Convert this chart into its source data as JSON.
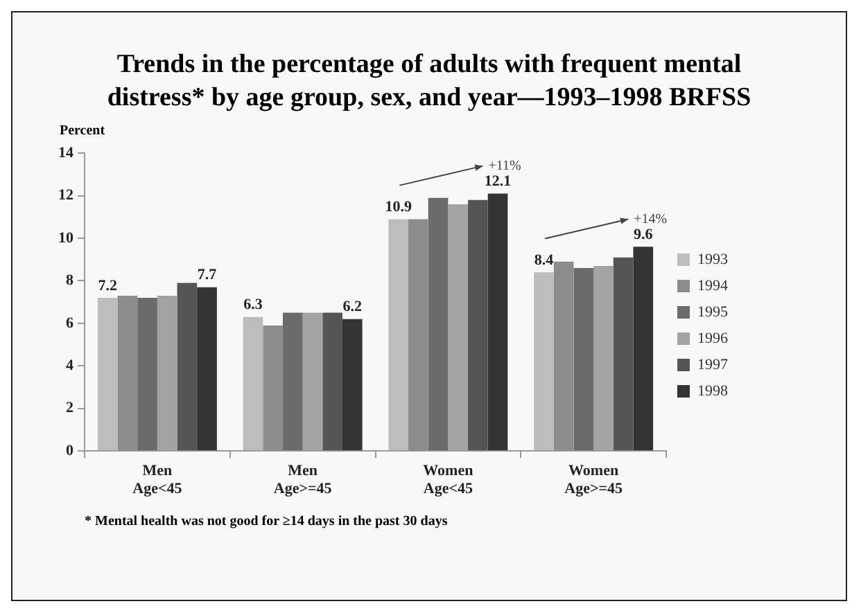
{
  "chart_data": {
    "type": "bar",
    "title": "Trends in the percentage of adults with frequent mental distress* by age group, sex, and year—1993–1998 BRFSS",
    "ylabel": "Percent",
    "categories": [
      "Men Age<45",
      "Men Age>=45",
      "Women Age<45",
      "Women Age>=45"
    ],
    "series": [
      {
        "name": "1993",
        "color": "#bdbdbd",
        "values": [
          7.2,
          6.3,
          10.9,
          8.4
        ],
        "value_labels": [
          "7.2",
          "6.3",
          "10.9",
          "8.4"
        ]
      },
      {
        "name": "1994",
        "color": "#8c8c8c",
        "values": [
          7.3,
          5.9,
          10.9,
          8.9
        ],
        "value_labels": [
          null,
          null,
          null,
          null
        ]
      },
      {
        "name": "1995",
        "color": "#6b6b6b",
        "values": [
          7.2,
          6.5,
          11.9,
          8.6
        ],
        "value_labels": [
          null,
          null,
          null,
          null
        ]
      },
      {
        "name": "1996",
        "color": "#a3a3a3",
        "values": [
          7.3,
          6.5,
          11.6,
          8.7
        ],
        "value_labels": [
          null,
          null,
          null,
          null
        ]
      },
      {
        "name": "1997",
        "color": "#555555",
        "values": [
          7.9,
          6.5,
          11.8,
          9.1
        ],
        "value_labels": [
          null,
          null,
          null,
          null
        ]
      },
      {
        "name": "1998",
        "color": "#333333",
        "values": [
          7.7,
          6.2,
          12.1,
          9.6
        ],
        "value_labels": [
          "7.7",
          "6.2",
          "12.1",
          "9.6"
        ]
      }
    ],
    "ylim": [
      0,
      14
    ],
    "yticks": [
      0,
      2,
      4,
      6,
      8,
      10,
      12,
      14
    ],
    "grid": false,
    "legend": "right",
    "annotations": [
      "+11%",
      "+14%",
      "* Mental health was not good for ≥14 days in the past 30 days"
    ]
  }
}
